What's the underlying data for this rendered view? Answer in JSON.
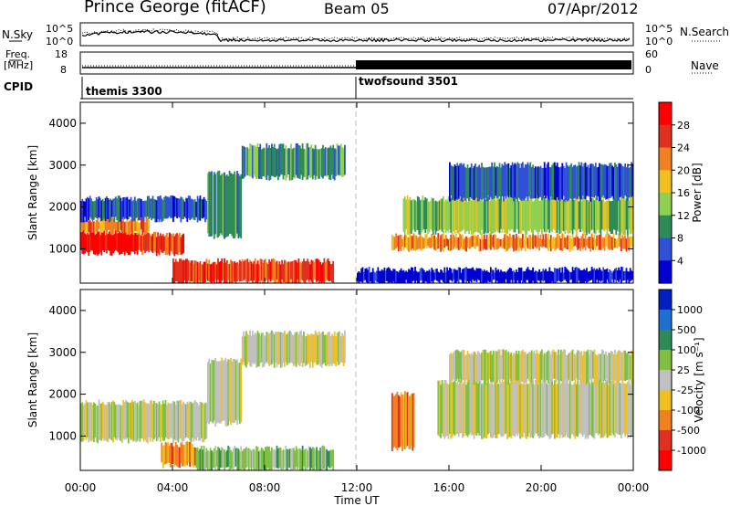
{
  "header": {
    "station": "Prince George (fitACF)",
    "beam": "Beam 05",
    "date": "07/Apr/2012"
  },
  "top_panels": {
    "nsky_label": "N.Sky",
    "nsearch_label": "N.Search",
    "noise_ticks": [
      "10^5",
      "10^0"
    ],
    "freq_label_line1": "Freq.",
    "freq_label_line2": "[MHz]",
    "freq_ticks": [
      "18",
      "8"
    ],
    "nave_label": "Nave",
    "nave_ticks": [
      "60",
      "0"
    ],
    "cpid_label": "CPID",
    "cpid_segments": [
      {
        "name": "themis 3300",
        "start_hour": 0
      },
      {
        "name": "twofsound 3501",
        "start_hour": 12
      }
    ]
  },
  "x_axis": {
    "label": "Time UT",
    "ticks": [
      "00:00",
      "04:00",
      "08:00",
      "12:00",
      "16:00",
      "20:00",
      "00:00"
    ]
  },
  "chart_data": [
    {
      "type": "heatmap",
      "name": "power-panel",
      "ylabel": "Slant Range [km]",
      "yticks": [
        "1000",
        "2000",
        "3000",
        "4000"
      ],
      "ylim": [
        180,
        4500
      ],
      "xlim": [
        0,
        24
      ],
      "colorbar_label": "Power [dB]",
      "colorbar_ticks": [
        "4",
        "8",
        "12",
        "16",
        "20",
        "24",
        "28"
      ],
      "colors": [
        "#0000d0",
        "#3050d8",
        "#2e8b57",
        "#90d050",
        "#f0c020",
        "#f08020",
        "#e03020",
        "#ff0000"
      ],
      "bands": [
        {
          "t0": 0.0,
          "t1": 2.5,
          "r0": 900,
          "r1": 1400,
          "level": 7
        },
        {
          "t0": 2.5,
          "t1": 4.5,
          "r0": 900,
          "r1": 1350,
          "level": 6
        },
        {
          "t0": 0.0,
          "t1": 3.0,
          "r0": 1400,
          "r1": 1700,
          "level": 5
        },
        {
          "t0": 0.0,
          "t1": 5.5,
          "r0": 1700,
          "r1": 2200,
          "level": 1
        },
        {
          "t0": 5.5,
          "t1": 7.0,
          "r0": 1300,
          "r1": 2800,
          "level": 2
        },
        {
          "t0": 7.0,
          "t1": 11.5,
          "r0": 2700,
          "r1": 3450,
          "level": 2
        },
        {
          "t0": 4.0,
          "t1": 11.0,
          "r0": 200,
          "r1": 700,
          "level": 6
        },
        {
          "t0": 13.5,
          "t1": 24.0,
          "r0": 1000,
          "r1": 1300,
          "level": 5
        },
        {
          "t0": 14.0,
          "t1": 24.0,
          "r0": 1400,
          "r1": 2200,
          "level": 3
        },
        {
          "t0": 16.0,
          "t1": 24.0,
          "r0": 2200,
          "r1": 3000,
          "level": 1
        },
        {
          "t0": 12.0,
          "t1": 24.0,
          "r0": 200,
          "r1": 500,
          "level": 0
        }
      ]
    },
    {
      "type": "heatmap",
      "name": "velocity-panel",
      "ylabel": "Slant Range [km]",
      "yticks": [
        "1000",
        "2000",
        "3000",
        "4000"
      ],
      "ylim": [
        180,
        4500
      ],
      "xlim": [
        0,
        24
      ],
      "colorbar_label": "Velocity [m s⁻¹]",
      "colorbar_ticks": [
        "1000",
        "500",
        "100",
        "25",
        "-25",
        "-100",
        "-500",
        "-1000"
      ],
      "colors": [
        "#0020c0",
        "#1e70d0",
        "#2e8b57",
        "#80c040",
        "#c0c0c0",
        "#f0c020",
        "#f08020",
        "#e03020",
        "#ff0000"
      ],
      "bands": [
        {
          "t0": 0.0,
          "t1": 5.5,
          "r0": 900,
          "r1": 1800,
          "level": 4
        },
        {
          "t0": 5.5,
          "t1": 7.0,
          "r0": 1300,
          "r1": 2800,
          "level": 4
        },
        {
          "t0": 7.0,
          "t1": 11.5,
          "r0": 2700,
          "r1": 3450,
          "level": 4
        },
        {
          "t0": 3.5,
          "t1": 5.0,
          "r0": 300,
          "r1": 800,
          "level": 6
        },
        {
          "t0": 5.0,
          "t1": 11.0,
          "r0": 200,
          "r1": 700,
          "level": 3
        },
        {
          "t0": 13.5,
          "t1": 14.5,
          "r0": 700,
          "r1": 2000,
          "level": 6
        },
        {
          "t0": 15.5,
          "t1": 24.0,
          "r0": 1000,
          "r1": 2300,
          "level": 4
        },
        {
          "t0": 16.0,
          "t1": 24.0,
          "r0": 2300,
          "r1": 3000,
          "level": 4
        }
      ]
    }
  ]
}
